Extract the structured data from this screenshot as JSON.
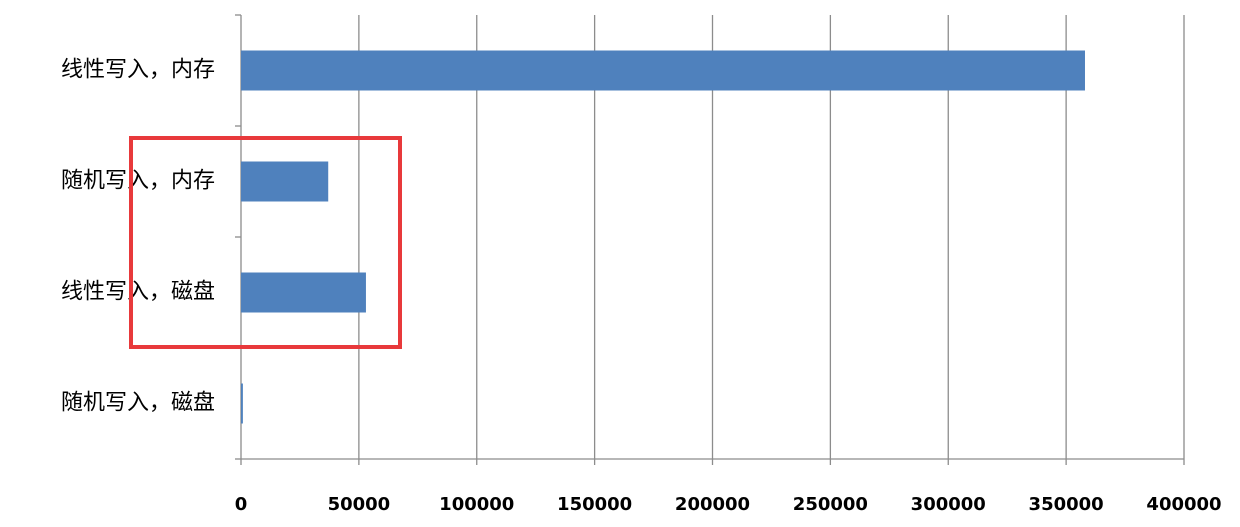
{
  "chart_data": {
    "type": "barh",
    "categories": [
      "线性写入，内存",
      "随机写入，内存",
      "线性写入，磁盘",
      "随机写入，磁盘"
    ],
    "values": [
      358000,
      37000,
      53000,
      800
    ],
    "color": "#4f81bd",
    "xlim": [
      0,
      400000
    ],
    "xticks": [
      0,
      50000,
      100000,
      150000,
      200000,
      250000,
      300000,
      350000,
      400000
    ],
    "grid": true
  }
}
